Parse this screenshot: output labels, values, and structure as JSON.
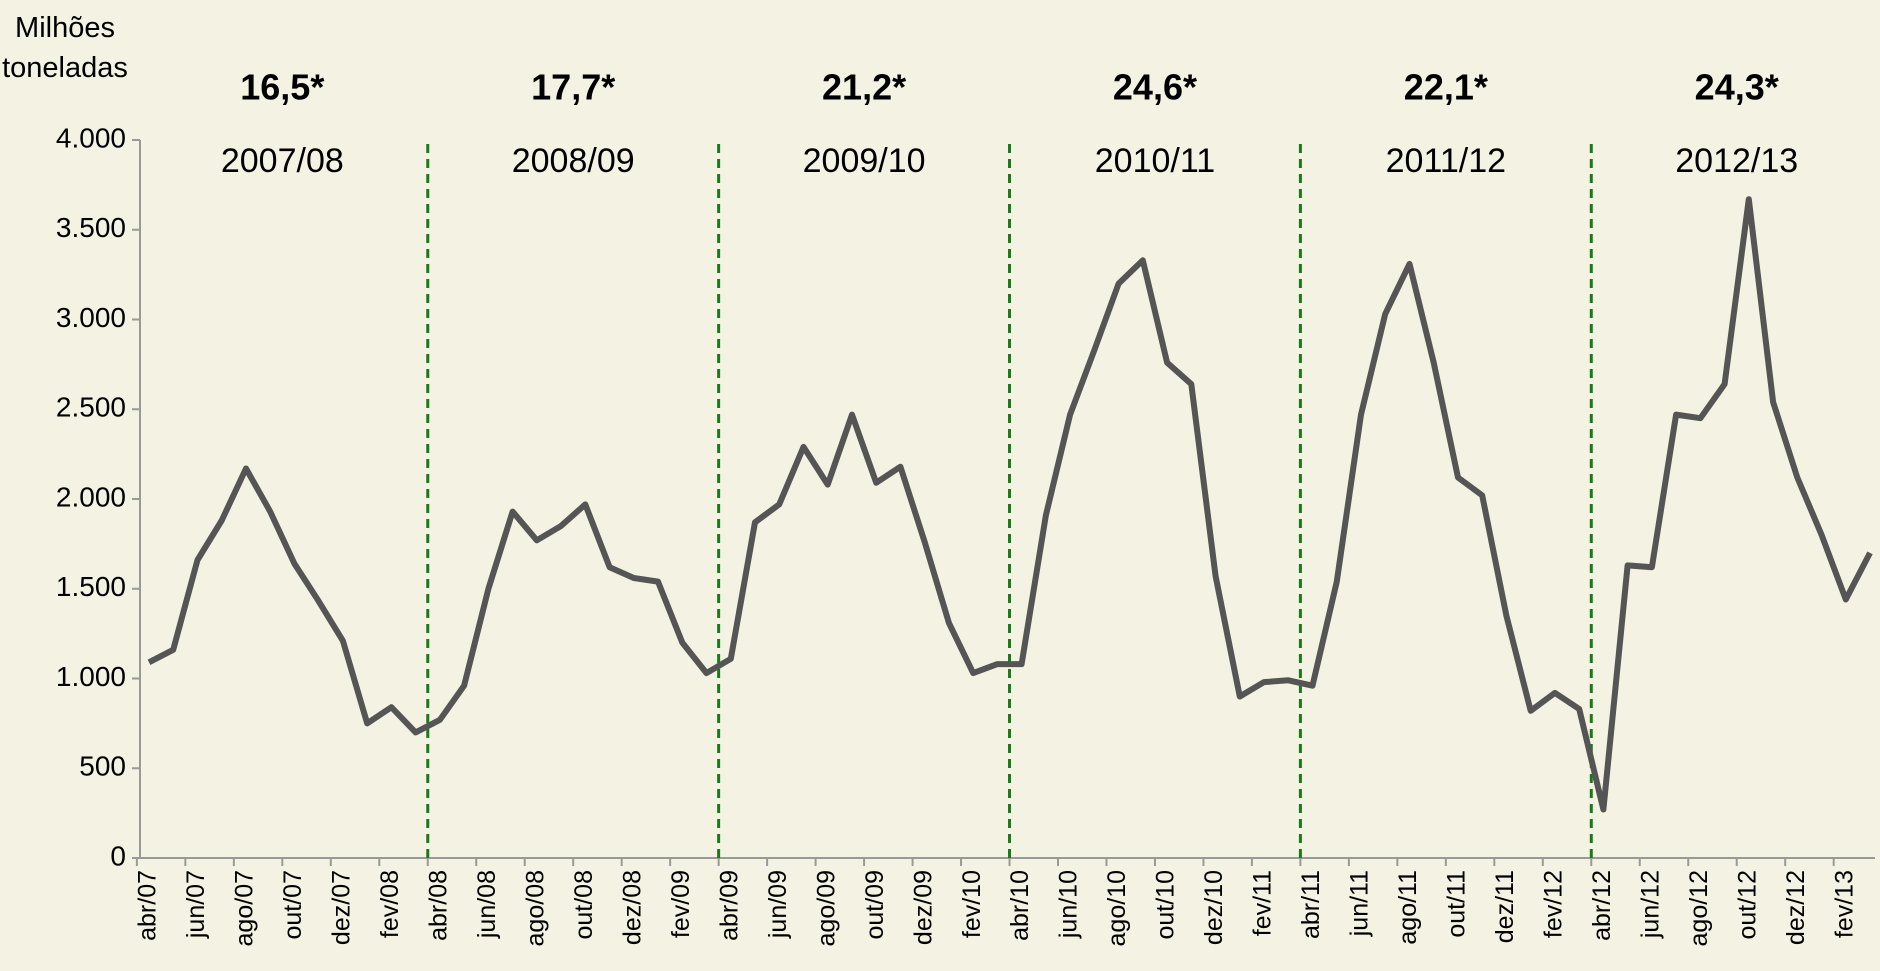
{
  "chart_data": {
    "type": "line",
    "y_label": "Milhões toneladas",
    "categories": [
      "abr/07",
      null,
      "jun/07",
      null,
      "ago/07",
      null,
      "out/07",
      null,
      "dez/07",
      null,
      "fev/08",
      null,
      "abr/08",
      null,
      "jun/08",
      null,
      "ago/08",
      null,
      "out/08",
      null,
      "dez/08",
      null,
      "fev/09",
      null,
      "abr/09",
      null,
      "jun/09",
      null,
      "ago/09",
      null,
      "out/09",
      null,
      "dez/09",
      null,
      "fev/10",
      null,
      "abr/10",
      null,
      "jun/10",
      null,
      "ago/10",
      null,
      "out/10",
      null,
      "dez/10",
      null,
      "fev/11",
      null,
      "abr/11",
      null,
      "jun/11",
      null,
      "ago/11",
      null,
      "out/11",
      null,
      "dez/11",
      null,
      "fev/12",
      null,
      "abr/12",
      null,
      "jun/12",
      null,
      "ago/12",
      null,
      "out/12",
      null,
      "dez/12",
      null,
      "fev/13",
      null
    ],
    "values": [
      1090,
      1160,
      1660,
      1880,
      2170,
      1930,
      1640,
      1430,
      1210,
      750,
      840,
      700,
      770,
      960,
      1500,
      1930,
      1770,
      1850,
      1970,
      1620,
      1560,
      1540,
      1200,
      1030,
      1110,
      1870,
      1970,
      2290,
      2080,
      2470,
      2090,
      2180,
      1760,
      1310,
      1030,
      1080,
      1080,
      1910,
      2470,
      2830,
      3200,
      3330,
      2760,
      2640,
      1570,
      900,
      980,
      990,
      960,
      1540,
      2470,
      3030,
      3310,
      2760,
      2120,
      2020,
      1350,
      820,
      920,
      830,
      270,
      1630,
      1620,
      2470,
      2450,
      2640,
      3670,
      2540,
      2120,
      1800,
      1440,
      1700
    ],
    "color": "#555555",
    "ylim": [
      0,
      4000
    ],
    "yticks": [
      0,
      500,
      {
        "value": 1000,
        "label": "1.000"
      },
      {
        "value": 1500,
        "label": "1.500"
      },
      {
        "value": 2000,
        "label": "2.000"
      },
      {
        "value": 2500,
        "label": "2.500"
      },
      {
        "value": 3000,
        "label": "3.000"
      },
      {
        "value": 3500,
        "label": "3.500"
      },
      {
        "value": 4000,
        "label": "4.000"
      }
    ],
    "seasons": [
      {
        "label": "2007/08",
        "total": "16,5*"
      },
      {
        "label": "2008/09",
        "total": "17,7*"
      },
      {
        "label": "2009/10",
        "total": "21,2*"
      },
      {
        "label": "2010/11",
        "total": "24,6*"
      },
      {
        "label": "2011/12",
        "total": "22,1*"
      },
      {
        "label": "2012/13",
        "total": "24,3*"
      }
    ],
    "divider_color": "#1a7a1a"
  }
}
